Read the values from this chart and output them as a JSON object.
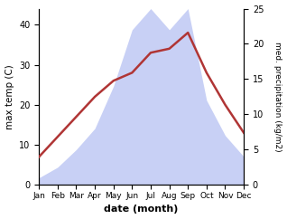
{
  "months": [
    "Jan",
    "Feb",
    "Mar",
    "Apr",
    "May",
    "Jun",
    "Jul",
    "Aug",
    "Sep",
    "Oct",
    "Nov",
    "Dec"
  ],
  "month_indices": [
    0,
    1,
    2,
    3,
    4,
    5,
    6,
    7,
    8,
    9,
    10,
    11
  ],
  "temperature": [
    7,
    12,
    17,
    22,
    26,
    28,
    33,
    34,
    38,
    28,
    20,
    13
  ],
  "precipitation": [
    1,
    2.5,
    5,
    8,
    14,
    22,
    25,
    22,
    25,
    12,
    7,
    4
  ],
  "temp_color": "#b03535",
  "precip_fill_color": "#c8d0f5",
  "precip_edge_color": "#c8d0f5",
  "temp_ylim": [
    0,
    44
  ],
  "precip_ylim": [
    0,
    25
  ],
  "temp_yticks": [
    0,
    10,
    20,
    30,
    40
  ],
  "precip_yticks": [
    0,
    5,
    10,
    15,
    20,
    25
  ],
  "xlabel": "date (month)",
  "ylabel_left": "max temp (C)",
  "ylabel_right": "med. precipitation (kg/m2)",
  "figsize": [
    3.18,
    2.42
  ],
  "dpi": 100
}
